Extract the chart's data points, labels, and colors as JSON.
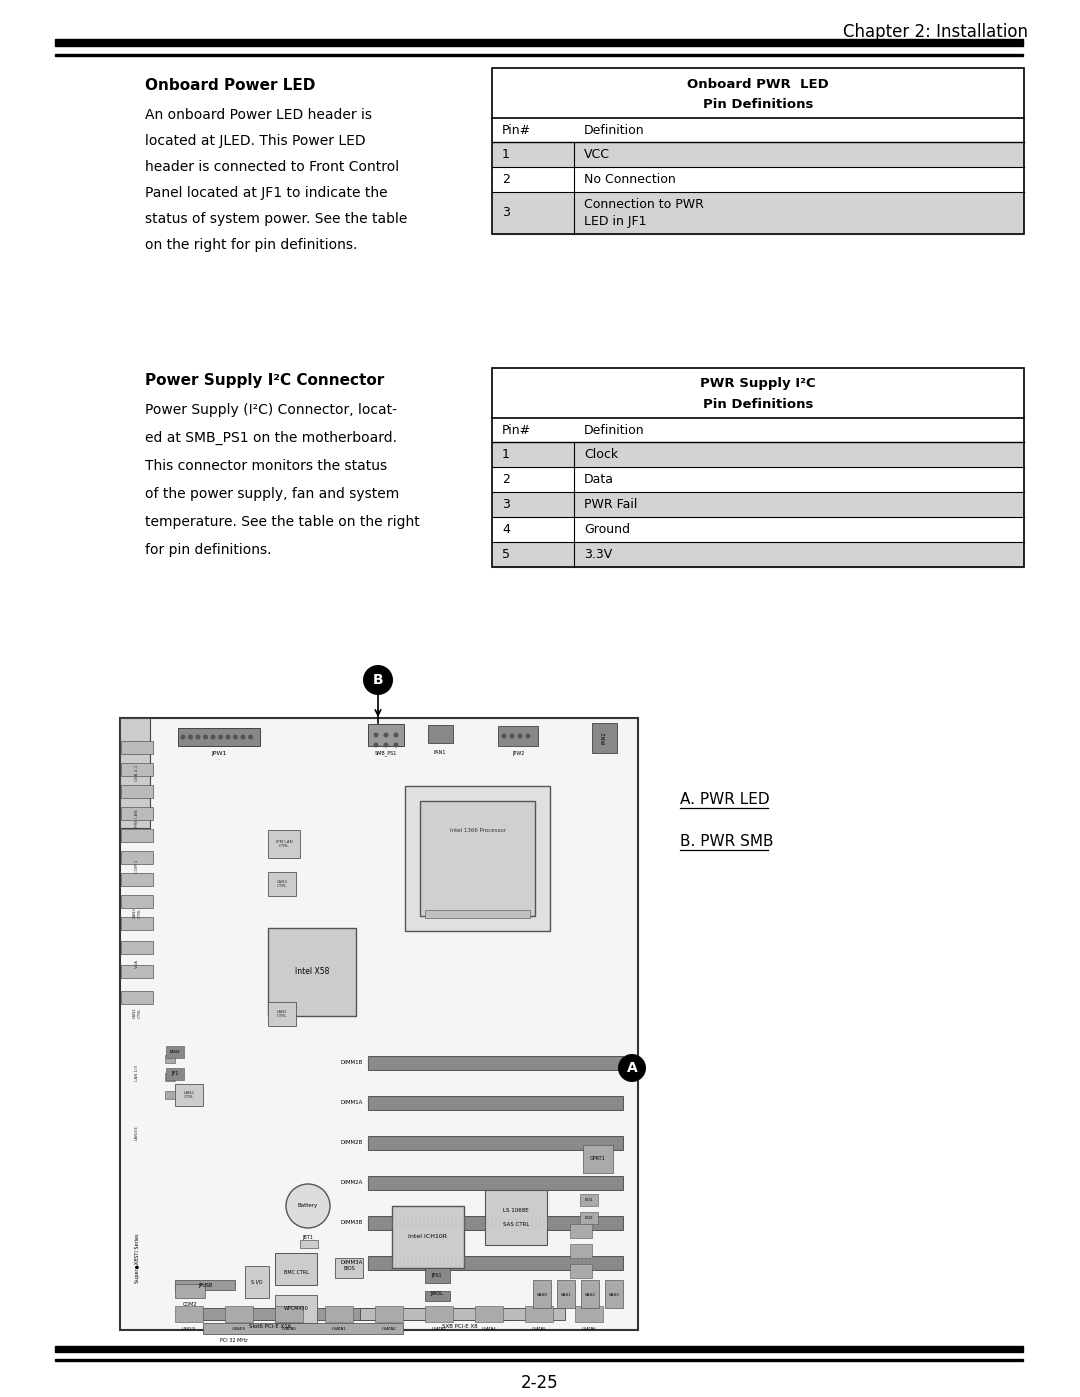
{
  "page_title": "Chapter 2: Installation",
  "page_number": "2-25",
  "bg_color": "#ffffff",
  "section1_title": "Onboard Power LED",
  "section1_text": [
    "An onboard Power LED header is",
    "located at JLED. This Power LED",
    "header is connected to Front Control",
    "Panel located at JF1 to indicate the",
    "status of system power. See the table",
    "on the right for pin definitions."
  ],
  "table1_title1": "Onboard PWR  LED",
  "table1_title2": "Pin Definitions",
  "table1_header": [
    "Pin#",
    "Definition"
  ],
  "table1_rows": [
    [
      "1",
      "VCC"
    ],
    [
      "2",
      "No Connection"
    ],
    [
      "3",
      "Connection to PWR\nLED in JF1"
    ]
  ],
  "table1_shaded_rows": [
    0,
    2
  ],
  "section2_title": "Power Supply I²C Connector",
  "section2_text": [
    "Power Supply (I²C) Connector, locat-",
    "ed at SMB_PS1 on the motherboard.",
    "This connector monitors the status",
    "of the power supply, fan and system",
    "temperature. See the table on the right",
    "for pin definitions."
  ],
  "table2_title1": "PWR Supply I²C",
  "table2_title2": "Pin Definitions",
  "table2_header": [
    "Pin#",
    "Definition"
  ],
  "table2_rows": [
    [
      "1",
      "Clock"
    ],
    [
      "2",
      "Data"
    ],
    [
      "3",
      "PWR Fail"
    ],
    [
      "4",
      "Ground"
    ],
    [
      "5",
      "3.3V"
    ]
  ],
  "table2_shaded_rows": [
    0,
    2,
    4
  ],
  "legend_a": "A. PWR LED",
  "legend_b": "B. PWR SMB",
  "shaded_color": "#d3d3d3",
  "table_border_color": "#000000"
}
